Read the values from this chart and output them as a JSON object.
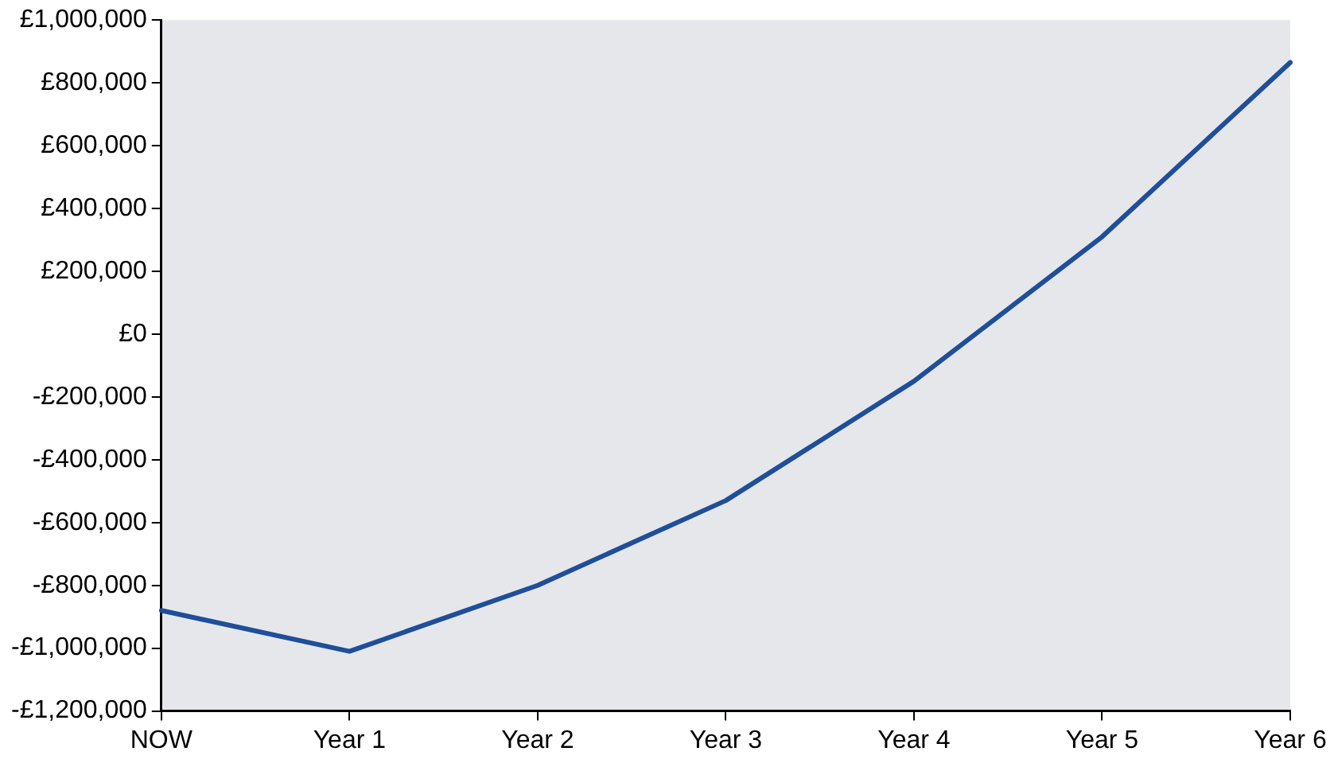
{
  "chart_data": {
    "type": "line",
    "categories": [
      "NOW",
      "Year 1",
      "Year 2",
      "Year 3",
      "Year 4",
      "Year 5",
      "Year 6"
    ],
    "series": [
      {
        "color": "#1f4e9a",
        "values": [
          -880000,
          -1010000,
          -800000,
          -530000,
          -150000,
          310000,
          865000
        ]
      }
    ],
    "ylim": [
      -1200000,
      1000000
    ],
    "yticks": [
      {
        "value": -1200000,
        "label": "-£1,200,000"
      },
      {
        "value": -1000000,
        "label": "-£1,000,000"
      },
      {
        "value": -800000,
        "label": "-£800,000"
      },
      {
        "value": -600000,
        "label": "-£600,000"
      },
      {
        "value": -400000,
        "label": "-£400,000"
      },
      {
        "value": -200000,
        "label": "-£200,000"
      },
      {
        "value": 0,
        "label": "£0"
      },
      {
        "value": 200000,
        "label": "£200,000"
      },
      {
        "value": 400000,
        "label": "£400,000"
      },
      {
        "value": 600000,
        "label": "£600,000"
      },
      {
        "value": 800000,
        "label": "£800,000"
      },
      {
        "value": 1000000,
        "label": "£1,000,000"
      }
    ],
    "grid": false,
    "legend": false,
    "marker": "none",
    "line_style": "solid"
  }
}
